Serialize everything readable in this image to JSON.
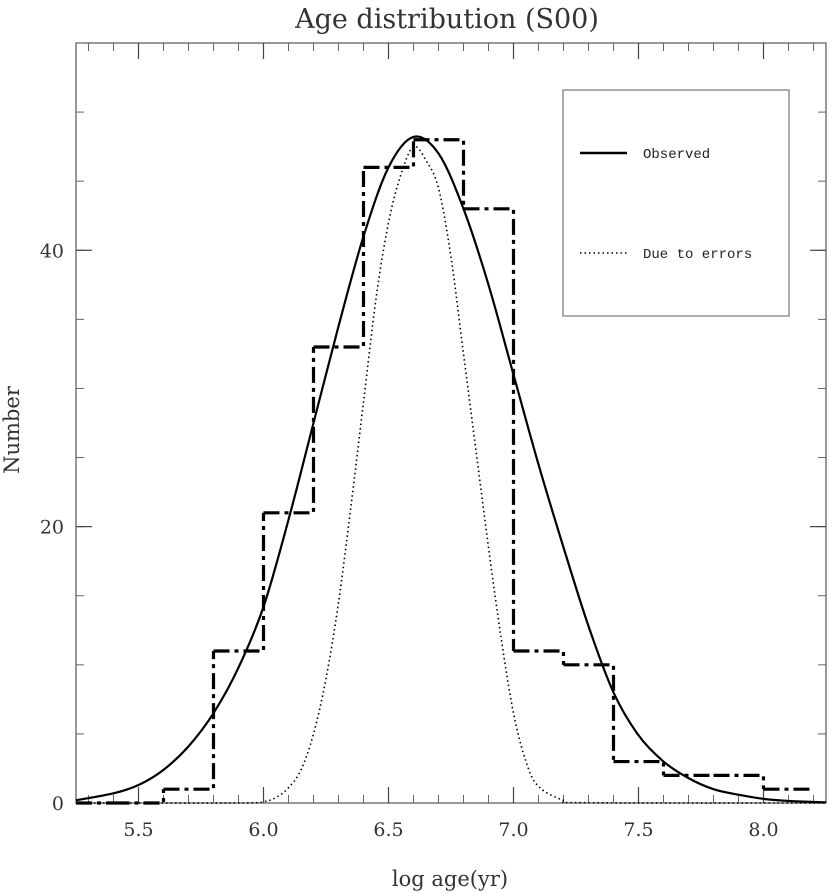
{
  "chart_data": {
    "type": "histogram-with-curves",
    "title": "Age distribution (S00)",
    "xlabel": "log age(yr)",
    "ylabel": "Number",
    "xlim": [
      5.25,
      8.25
    ],
    "ylim": [
      0,
      55
    ],
    "xticks": [
      {
        "value": 5.5,
        "label": "5.5"
      },
      {
        "value": 6.0,
        "label": "6.0"
      },
      {
        "value": 6.5,
        "label": "6.5"
      },
      {
        "value": 7.0,
        "label": "7.0"
      },
      {
        "value": 7.5,
        "label": "7.5"
      },
      {
        "value": 8.0,
        "label": "8.0"
      }
    ],
    "yticks": [
      {
        "value": 0,
        "label": "0"
      },
      {
        "value": 20,
        "label": "20"
      },
      {
        "value": 40,
        "label": "40"
      }
    ],
    "legend": {
      "placement": "top-right",
      "entries": [
        {
          "label": "Observed",
          "style": "solid"
        },
        {
          "label": "Due to errors",
          "style": "dotted"
        }
      ]
    },
    "histogram": {
      "style": "dash-dot",
      "bin_edges": [
        5.2,
        5.4,
        5.6,
        5.8,
        6.0,
        6.2,
        6.4,
        6.6,
        6.8,
        7.0,
        7.2,
        7.4,
        7.6,
        7.8,
        8.0,
        8.2
      ],
      "counts": [
        0,
        0,
        1,
        11,
        21,
        33,
        46,
        48,
        43,
        11,
        10,
        3,
        2,
        2,
        1
      ]
    },
    "series": [
      {
        "name": "Observed",
        "style": "solid",
        "x": [
          5.25,
          5.4,
          5.5,
          5.6,
          5.7,
          5.8,
          5.9,
          6.0,
          6.1,
          6.2,
          6.3,
          6.4,
          6.5,
          6.6,
          6.7,
          6.8,
          6.9,
          7.0,
          7.1,
          7.2,
          7.3,
          7.4,
          7.5,
          7.6,
          7.7,
          7.8,
          7.9,
          8.0,
          8.1,
          8.25
        ],
        "y": [
          0.2,
          0.7,
          1.3,
          2.4,
          4.1,
          6.5,
          9.8,
          14.2,
          20.5,
          27.5,
          34.5,
          41.0,
          46.0,
          48.2,
          47.0,
          43.0,
          37.5,
          31.0,
          24.5,
          18.5,
          12.8,
          8.0,
          4.9,
          3.0,
          1.8,
          1.0,
          0.6,
          0.3,
          0.15,
          0.05
        ]
      },
      {
        "name": "Due to errors",
        "style": "dotted",
        "x": [
          5.25,
          5.9,
          6.0,
          6.05,
          6.1,
          6.15,
          6.2,
          6.25,
          6.3,
          6.35,
          6.4,
          6.45,
          6.5,
          6.55,
          6.6,
          6.65,
          6.7,
          6.75,
          6.8,
          6.85,
          6.9,
          6.95,
          7.0,
          7.05,
          7.1,
          7.2,
          7.3,
          8.25
        ],
        "y": [
          0,
          0,
          0.1,
          0.4,
          1.1,
          2.4,
          5.0,
          9.0,
          14.5,
          21.5,
          29.0,
          36.5,
          42.0,
          45.5,
          47.5,
          46.5,
          44.5,
          39.5,
          32.5,
          25.5,
          18.5,
          12.0,
          6.5,
          3.0,
          1.2,
          0.2,
          0.02,
          0
        ]
      }
    ],
    "grid": false
  }
}
